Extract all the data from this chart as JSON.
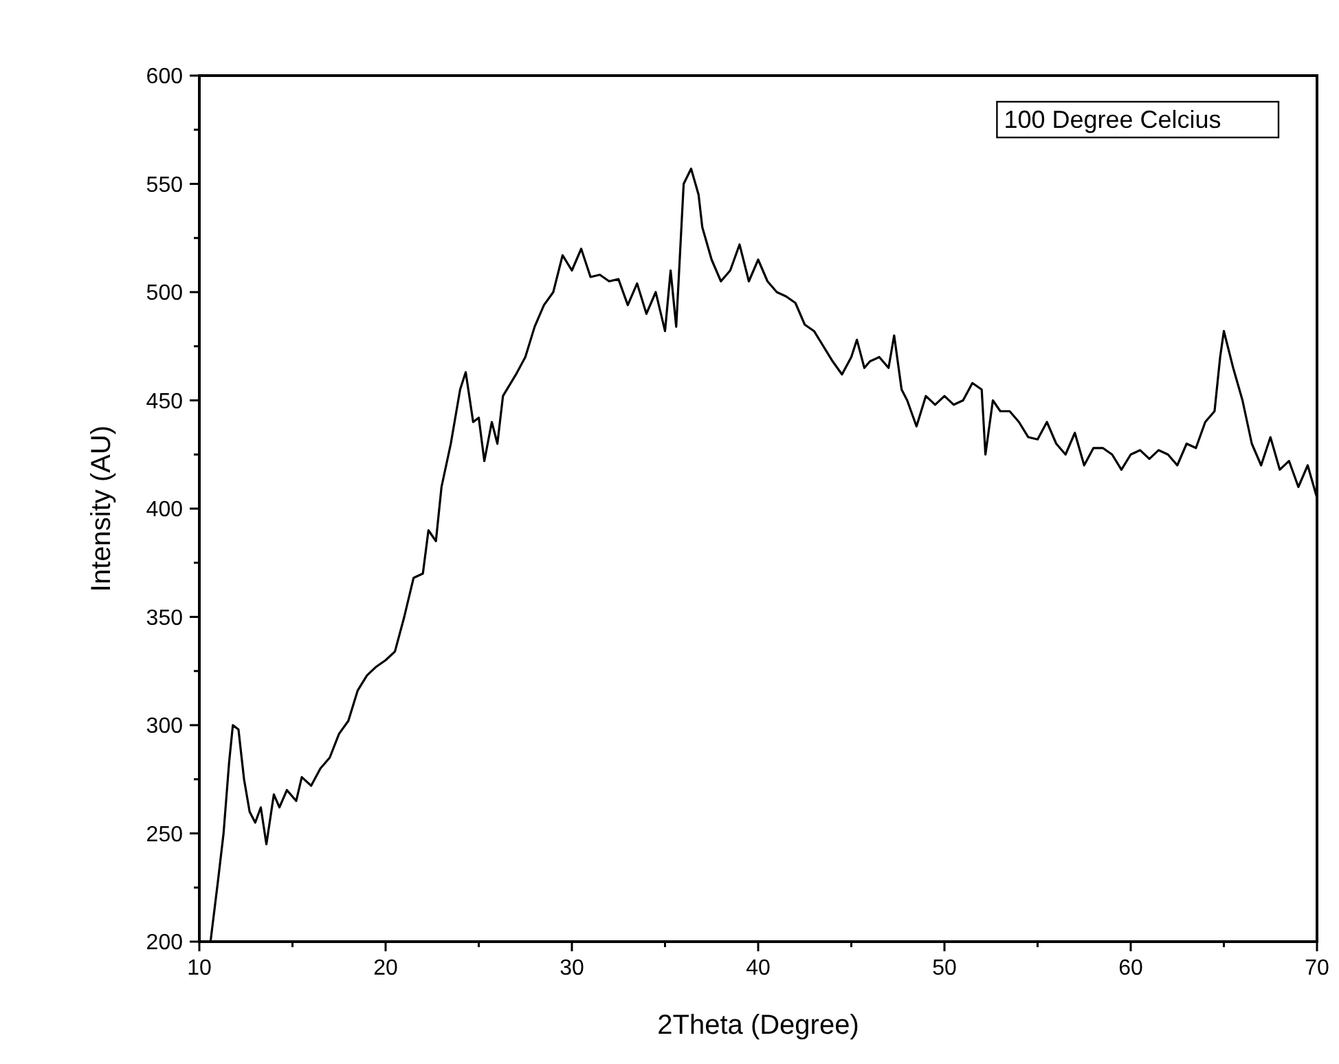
{
  "chart_data": {
    "type": "line",
    "xlabel": "2Theta (Degree)",
    "ylabel": "Intensity (AU)",
    "annotations": [
      "100 Degree Celcius"
    ],
    "xlim": [
      10,
      70
    ],
    "ylim": [
      200,
      600
    ],
    "xticks": [
      10,
      {
        "value": 15,
        "label": null
      },
      20,
      {
        "value": 25,
        "label": null
      },
      30,
      {
        "value": 35,
        "label": null
      },
      40,
      {
        "value": 45,
        "label": null
      },
      50,
      {
        "value": 55,
        "label": null
      },
      60,
      {
        "value": 65,
        "label": null
      },
      70
    ],
    "yticks": [
      200,
      {
        "value": 225,
        "label": null
      },
      250,
      {
        "value": 275,
        "label": null
      },
      300,
      {
        "value": 325,
        "label": null
      },
      350,
      {
        "value": 375,
        "label": null
      },
      400,
      {
        "value": 425,
        "label": null
      },
      450,
      {
        "value": 475,
        "label": null
      },
      500,
      {
        "value": 525,
        "label": null
      },
      550,
      {
        "value": 575,
        "label": null
      },
      600
    ],
    "grid": false,
    "marker": "none",
    "line_style": "solid",
    "series": [
      {
        "color": "#000000",
        "x": [
          10.6,
          11.0,
          11.3,
          11.6,
          11.8,
          12.1,
          12.4,
          12.7,
          13.0,
          13.3,
          13.6,
          14.0,
          14.3,
          14.7,
          15.2,
          15.5,
          16.0,
          16.5,
          17.0,
          17.5,
          18.0,
          18.5,
          19.0,
          19.5,
          20.0,
          20.5,
          21.0,
          21.5,
          22.0,
          22.3,
          22.7,
          23.0,
          23.5,
          24.0,
          24.3,
          24.7,
          25.0,
          25.3,
          25.7,
          26.0,
          26.3,
          27.0,
          27.5,
          28.0,
          28.5,
          29.0,
          29.5,
          30.0,
          30.5,
          31.0,
          31.5,
          32.0,
          32.5,
          33.0,
          33.5,
          34.0,
          34.5,
          35.0,
          35.3,
          35.6,
          36.0,
          36.4,
          36.8,
          37.0,
          37.5,
          38.0,
          38.5,
          39.0,
          39.5,
          40.0,
          40.5,
          41.0,
          41.5,
          42.0,
          42.5,
          43.0,
          43.5,
          44.0,
          44.5,
          45.0,
          45.3,
          45.7,
          46.0,
          46.5,
          47.0,
          47.3,
          47.7,
          48.0,
          48.5,
          49.0,
          49.5,
          50.0,
          50.5,
          51.0,
          51.5,
          52.0,
          52.2,
          52.6,
          53.0,
          53.5,
          54.0,
          54.5,
          55.0,
          55.5,
          56.0,
          56.5,
          57.0,
          57.5,
          58.0,
          58.5,
          59.0,
          59.5,
          60.0,
          60.5,
          61.0,
          61.5,
          62.0,
          62.5,
          63.0,
          63.5,
          64.0,
          64.5,
          64.8,
          65.0,
          65.5,
          66.0,
          66.5,
          67.0,
          67.5,
          68.0,
          68.5,
          69.0,
          69.5,
          70.0
        ],
        "values": [
          200,
          228,
          250,
          283,
          300,
          298,
          275,
          260,
          255,
          262,
          245,
          268,
          262,
          270,
          265,
          276,
          272,
          280,
          285,
          296,
          302,
          316,
          323,
          327,
          330,
          334,
          350,
          368,
          370,
          390,
          385,
          410,
          430,
          455,
          463,
          440,
          442,
          422,
          440,
          430,
          452,
          462,
          470,
          484,
          494,
          500,
          517,
          510,
          520,
          507,
          508,
          505,
          506,
          494,
          504,
          490,
          500,
          482,
          510,
          484,
          550,
          557,
          545,
          530,
          515,
          505,
          510,
          522,
          505,
          515,
          505,
          500,
          498,
          495,
          485,
          482,
          475,
          468,
          462,
          470,
          478,
          465,
          468,
          470,
          465,
          480,
          455,
          450,
          438,
          452,
          448,
          452,
          448,
          450,
          458,
          455,
          425,
          450,
          445,
          445,
          440,
          433,
          432,
          440,
          430,
          425,
          435,
          420,
          428,
          428,
          425,
          418,
          425,
          427,
          423,
          427,
          425,
          420,
          430,
          428,
          440,
          445,
          470,
          482,
          465,
          450,
          430,
          420,
          433,
          418,
          422,
          410,
          420,
          405
        ]
      }
    ]
  }
}
